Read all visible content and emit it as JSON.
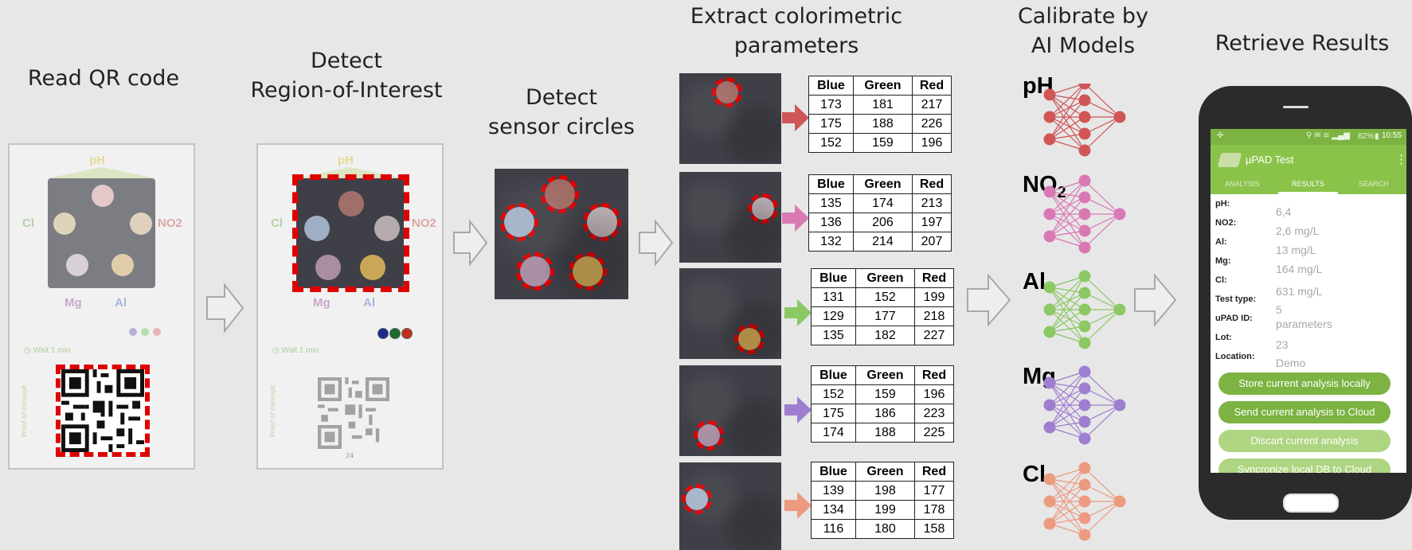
{
  "steps": {
    "read_qr": "Read QR code",
    "detect_roi_1": "Detect",
    "detect_roi_2": "Region-of-Interest",
    "detect_circles_1": "Detect",
    "detect_circles_2": "sensor circles",
    "extract_1": "Extract colorimetric",
    "extract_2": "parameters",
    "calibrate_1": "Calibrate by",
    "calibrate_2": "AI Models",
    "retrieve": "Retrieve Results"
  },
  "card": {
    "ph": "pH",
    "cl": "Cl",
    "no2": "NO2",
    "mg": "Mg",
    "al": "Al",
    "wait": "Wait 1 min",
    "side_note": "Proof of concept",
    "qr_caption": "24"
  },
  "table_headers": [
    "Blue",
    "Green",
    "Red"
  ],
  "tables": [
    {
      "rows": [
        [
          "173",
          "181",
          "217"
        ],
        [
          "175",
          "188",
          "226"
        ],
        [
          "152",
          "159",
          "196"
        ]
      ]
    },
    {
      "rows": [
        [
          "135",
          "174",
          "213"
        ],
        [
          "136",
          "206",
          "197"
        ],
        [
          "132",
          "214",
          "207"
        ]
      ]
    },
    {
      "rows": [
        [
          "131",
          "152",
          "199"
        ],
        [
          "129",
          "177",
          "218"
        ],
        [
          "135",
          "182",
          "227"
        ]
      ]
    },
    {
      "rows": [
        [
          "152",
          "159",
          "196"
        ],
        [
          "175",
          "186",
          "223"
        ],
        [
          "174",
          "188",
          "225"
        ]
      ]
    },
    {
      "rows": [
        [
          "139",
          "198",
          "177"
        ],
        [
          "134",
          "199",
          "178"
        ],
        [
          "116",
          "180",
          "158"
        ]
      ]
    }
  ],
  "models": [
    {
      "name": "pH",
      "sub": "",
      "color": "#d05556"
    },
    {
      "name": "NO",
      "sub": "2",
      "color": "#d979b4"
    },
    {
      "name": "Al",
      "sub": "",
      "color": "#8cc863"
    },
    {
      "name": "Mg",
      "sub": "",
      "color": "#9e7ed0"
    },
    {
      "name": "Cl",
      "sub": "",
      "color": "#ec9a80"
    }
  ],
  "phone": {
    "status_time": "10:55",
    "status_battery": "82%",
    "app_title": "µPAD Test",
    "tabs": [
      "ANALYSIS",
      "RESULTS",
      "SEARCH"
    ],
    "results": [
      {
        "key": "pH:",
        "value": "6,4"
      },
      {
        "key": "NO2:",
        "value": "2,6 mg/L"
      },
      {
        "key": "Al:",
        "value": "13 mg/L"
      },
      {
        "key": "Mg:",
        "value": "164 mg/L"
      },
      {
        "key": "Cl:",
        "value": "631 mg/L"
      },
      {
        "key": "Test type:",
        "value": "5"
      },
      {
        "key": "uPAD ID:",
        "value": "parameters"
      },
      {
        "key": "Lot:",
        "value": "23"
      },
      {
        "key": "Location:",
        "value": "Demo"
      }
    ],
    "buttons": [
      "Store current analysis locally",
      "Send current analysis to Cloud",
      "Discart current analysis",
      "Syncronize local DB to Cloud"
    ]
  }
}
